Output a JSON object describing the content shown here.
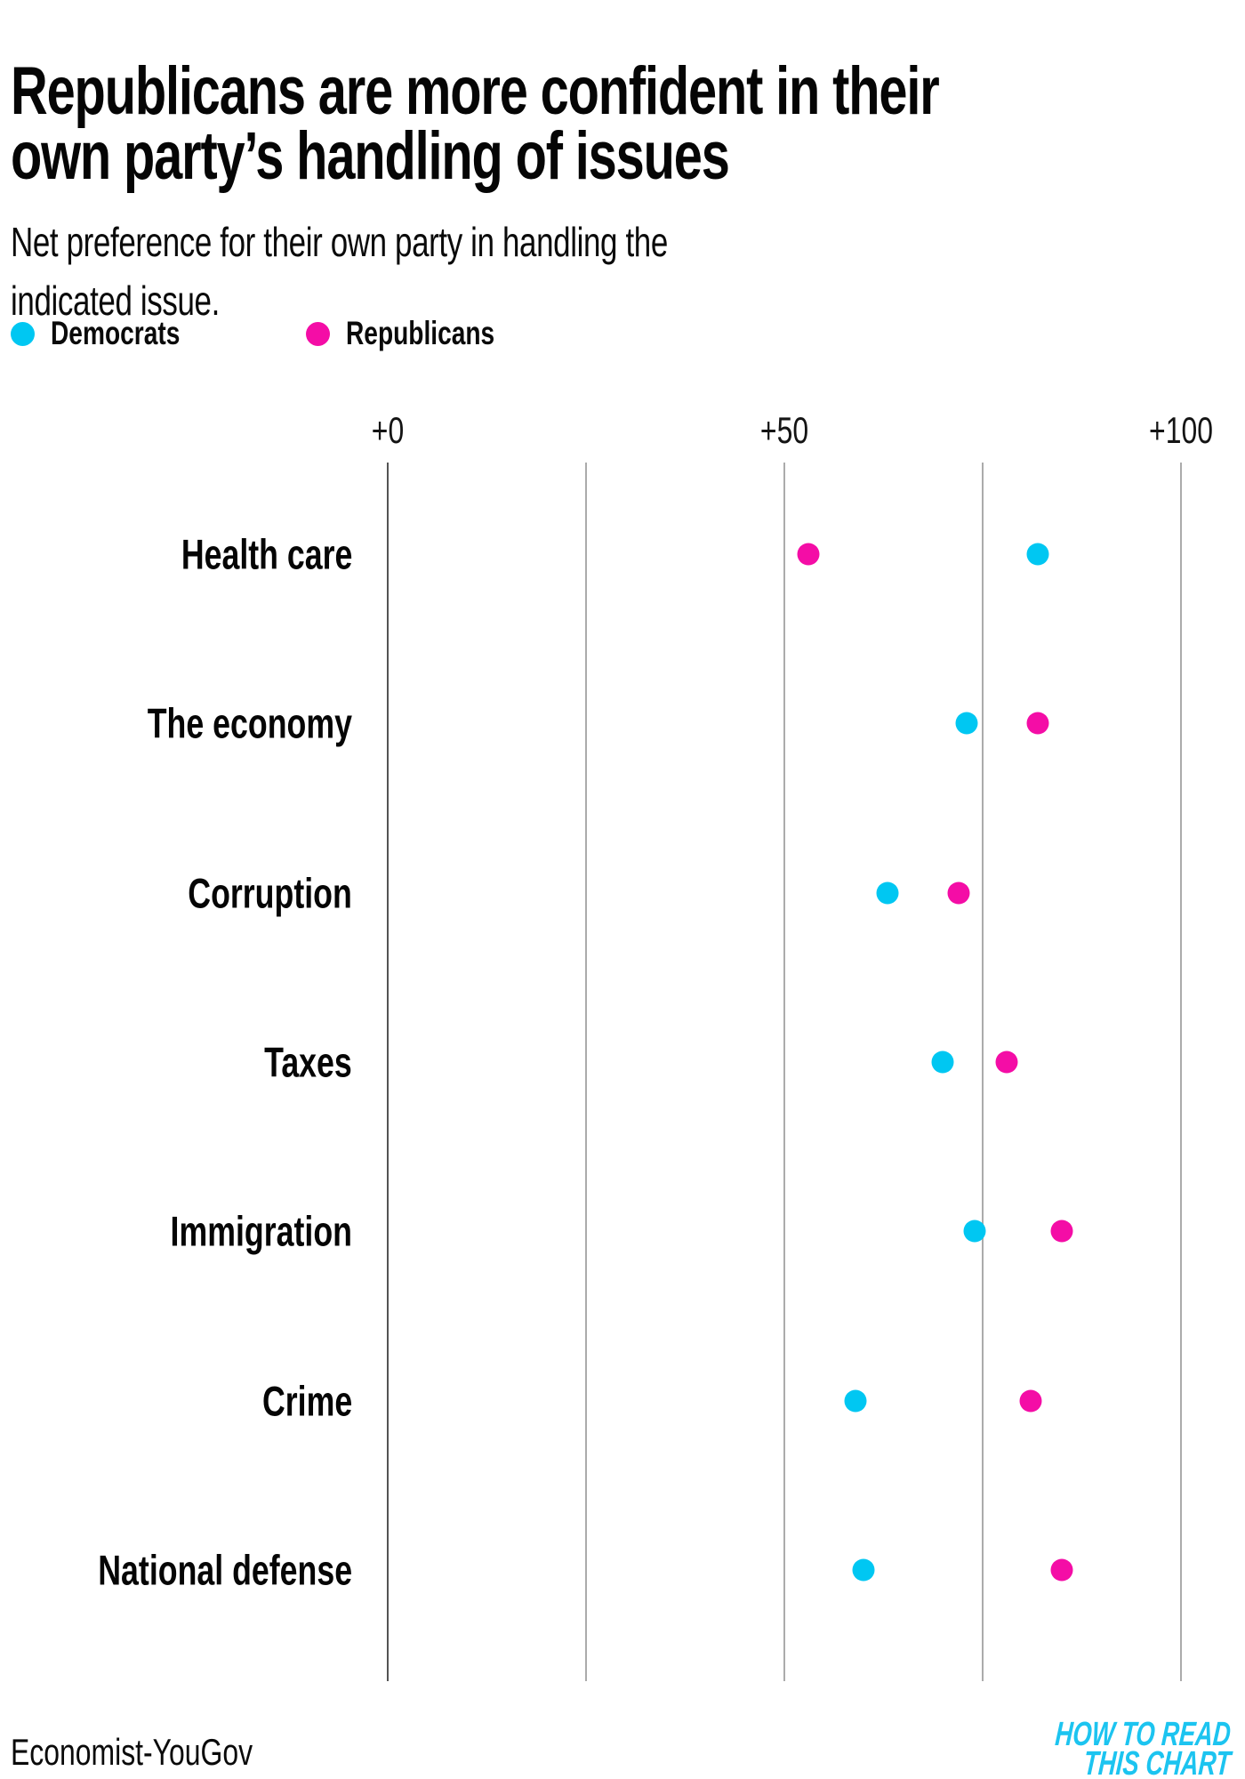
{
  "header": {
    "title_lines": [
      "Republicans are more confident in their",
      "own party’s handling of issues"
    ],
    "subtitle_lines": [
      "Net preference for their own party in handling the",
      "indicated issue."
    ]
  },
  "legend": [
    {
      "label": "Democrats",
      "color": "#00c7f2"
    },
    {
      "label": "Republicans",
      "color": "#f40da6"
    }
  ],
  "footer": {
    "source": "Economist-YouGov",
    "logo_line1": "HOW TO READ",
    "logo_line2": "THIS CHART",
    "logo_color": "#1cc4f0"
  },
  "colors": {
    "gridline": "#ababab",
    "zero_line": "#545454"
  },
  "chart_data": {
    "type": "scatter",
    "title": "Republicans are more confident in their own party’s handling of issues",
    "subtitle": "Net preference for their own party in handling the indicated issue.",
    "categories": [
      "Health care",
      "The economy",
      "Corruption",
      "Taxes",
      "Immigration",
      "Crime",
      "National defense"
    ],
    "series": [
      {
        "name": "Democrats",
        "color": "#00c7f2",
        "values": [
          82,
          73,
          63,
          70,
          74,
          59,
          60
        ]
      },
      {
        "name": "Republicans",
        "color": "#f40da6",
        "values": [
          53,
          82,
          72,
          78,
          85,
          81,
          85
        ]
      }
    ],
    "xlabel": "",
    "ylabel": "",
    "xlim": [
      0,
      100
    ],
    "x_ticks": [
      {
        "value": 0,
        "label": "+0"
      },
      {
        "value": 50,
        "label": "+50"
      },
      {
        "value": 100,
        "label": "+100"
      }
    ],
    "gridlines": [
      0,
      25,
      50,
      75,
      100
    ],
    "legend_position": "top-left",
    "grid": "vertical-only",
    "source": "Economist-YouGov"
  }
}
